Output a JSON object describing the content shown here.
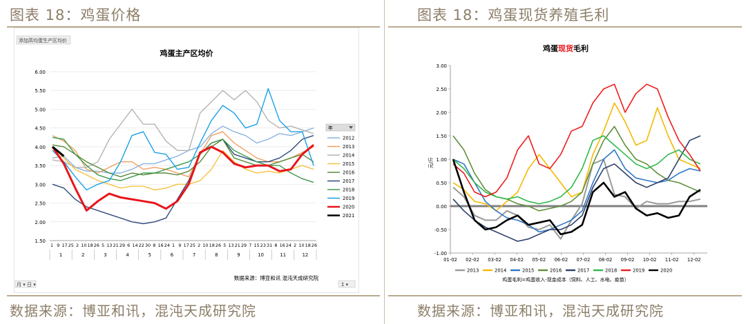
{
  "left": {
    "heading": "图表 18：鸡蛋价格",
    "footer": "数据来源：博亚和讯，混沌天成研究院",
    "sheet_tag": "添加高均蛋生产区均价",
    "bottom_ctrl_left": "月 ▾ 日 ▾",
    "bottom_ctrl_right": "Σ ▾",
    "legend_header": "年",
    "legend_filter_icon": "filter-icon",
    "chart_data": {
      "type": "line",
      "title": "鸡蛋主产区均价",
      "ylim": [
        1.5,
        6.0
      ],
      "yticks": [
        "6.00",
        "5.50",
        "5.00",
        "4.50",
        "4.00",
        "3.50",
        "3.00",
        "2.50",
        "2.00",
        "1.50"
      ],
      "xtick_labels": [
        "1",
        "9",
        "17",
        "25",
        "2",
        "10",
        "18",
        "26",
        "5",
        "13",
        "21",
        "29",
        "6",
        "14",
        "22",
        "30",
        "8",
        "16",
        "24",
        "1",
        "9",
        "17",
        "25",
        "2",
        "10",
        "18",
        "26",
        "5",
        "13",
        "21",
        "29",
        "7",
        "15",
        "23",
        "31",
        "8",
        "16",
        "24",
        "2",
        "10",
        "18",
        "26"
      ],
      "month_labels": [
        "1",
        "2",
        "3",
        "4",
        "5",
        "6",
        "7",
        "8",
        "9",
        "10",
        "11",
        "12"
      ],
      "note": "数据来源：博亚和讯  混沌天成研究院",
      "series": [
        {
          "name": "2012",
          "color": "#8ab4e0",
          "width": 1.4,
          "values": [
            3.7,
            3.75,
            3.45,
            3.35,
            3.35,
            3.3,
            3.3,
            3.4,
            3.55,
            3.55,
            3.65,
            3.75,
            3.9,
            4.0,
            4.35,
            4.55,
            4.4,
            4.3,
            4.1,
            4.2,
            4.35,
            4.3,
            4.4,
            4.5
          ]
        },
        {
          "name": "2013",
          "color": "#f0a060",
          "width": 1.4,
          "values": [
            4.3,
            4.15,
            3.9,
            3.4,
            3.3,
            3.45,
            3.6,
            3.6,
            3.4,
            3.45,
            3.4,
            3.3,
            3.2,
            3.8,
            4.3,
            4.4,
            4.1,
            3.9,
            3.7,
            3.6,
            3.6,
            3.7,
            3.85,
            4.0
          ]
        },
        {
          "name": "2014",
          "color": "#b4b4b4",
          "width": 1.4,
          "values": [
            3.65,
            3.6,
            3.45,
            3.45,
            3.6,
            4.2,
            4.6,
            5.0,
            4.6,
            4.6,
            4.15,
            3.9,
            3.9,
            4.9,
            5.2,
            5.5,
            5.25,
            5.5,
            5.2,
            4.7,
            4.5,
            4.55,
            4.45,
            4.35
          ]
        },
        {
          "name": "2015",
          "color": "#f5c242",
          "width": 1.4,
          "values": [
            4.0,
            3.7,
            3.4,
            3.25,
            3.1,
            3.0,
            2.9,
            2.95,
            2.95,
            2.85,
            2.9,
            3.0,
            3.0,
            3.1,
            3.4,
            3.9,
            3.6,
            3.4,
            3.3,
            3.35,
            3.3,
            3.4,
            3.5,
            3.4
          ]
        },
        {
          "name": "2016",
          "color": "#5a8a3a",
          "width": 1.4,
          "values": [
            4.05,
            4.0,
            3.8,
            3.6,
            3.45,
            3.3,
            3.2,
            3.3,
            3.25,
            3.3,
            3.3,
            3.25,
            3.35,
            3.6,
            4.0,
            4.2,
            3.7,
            3.6,
            3.5,
            3.5,
            3.6,
            3.7,
            3.8,
            3.6
          ]
        },
        {
          "name": "2017",
          "color": "#2e4a7a",
          "width": 1.4,
          "values": [
            3.0,
            2.9,
            2.6,
            2.4,
            2.3,
            2.2,
            2.1,
            2.0,
            1.95,
            2.0,
            2.1,
            2.6,
            3.1,
            3.8,
            4.1,
            4.2,
            3.8,
            3.7,
            3.6,
            3.6,
            3.7,
            3.9,
            4.2,
            4.3
          ]
        },
        {
          "name": "2018",
          "color": "#3e9a4a",
          "width": 1.4,
          "values": [
            4.25,
            4.2,
            3.8,
            3.5,
            3.25,
            3.15,
            3.1,
            3.2,
            3.3,
            3.3,
            3.4,
            3.5,
            3.6,
            3.8,
            4.1,
            4.2,
            3.9,
            3.75,
            3.6,
            3.5,
            3.5,
            3.3,
            3.15,
            3.05
          ]
        },
        {
          "name": "2019",
          "color": "#1aa0e6",
          "width": 1.4,
          "values": [
            3.9,
            3.6,
            3.2,
            2.85,
            3.0,
            3.1,
            3.6,
            4.3,
            4.4,
            3.85,
            3.8,
            3.4,
            3.45,
            4.1,
            4.7,
            5.1,
            4.9,
            4.5,
            4.6,
            5.55,
            4.7,
            4.4,
            4.4,
            3.5
          ]
        },
        {
          "name": "2020",
          "color": "#e8151b",
          "width": 3.0,
          "values": [
            4.0,
            3.55,
            2.9,
            2.3,
            2.55,
            2.75,
            2.65,
            2.6,
            2.55,
            2.5,
            2.35,
            2.55,
            3.0,
            3.85,
            4.0,
            3.85,
            3.55,
            3.45,
            3.5,
            3.5,
            3.35,
            3.4,
            3.8,
            4.05
          ]
        },
        {
          "name": "2021",
          "color": "#000000",
          "width": 3.0,
          "values": [
            4.0,
            3.75
          ]
        }
      ]
    }
  },
  "right": {
    "heading": "图表 18：鸡蛋现货养殖毛利",
    "footer": "数据来源：博亚和讯，混沌天成研究院",
    "chart_data": {
      "type": "line",
      "title_parts": [
        "鸡蛋",
        "现货",
        "毛利"
      ],
      "ylabel": "元/斤",
      "ylim": [
        -1.0,
        3.0
      ],
      "yticks": [
        "3.00",
        "2.50",
        "2.00",
        "1.50",
        "1.00",
        "0.50",
        "0.00",
        "-0.50",
        "-1.00"
      ],
      "xticks": [
        "01-02",
        "02-02",
        "03-02",
        "04-02",
        "05-02",
        "06-02",
        "07-02",
        "08-02",
        "09-02",
        "10-02",
        "11-02",
        "12-02"
      ],
      "note": "鸡蛋毛利=鸡蛋收入-现金成本（饲料、人工、水电、疫苗）",
      "series": [
        {
          "name": "2013",
          "color": "#999999",
          "width": 2.0,
          "values": [
            0.4,
            0.2,
            -0.2,
            -0.3,
            -0.3,
            -0.1,
            -0.2,
            -0.45,
            -0.5,
            -0.4,
            -0.7,
            -0.3,
            0.05,
            0.9,
            1.0,
            0.25,
            0.2,
            -0.05,
            0.1,
            0.05,
            0.05,
            0.1,
            0.1,
            0.15
          ]
        },
        {
          "name": "2014",
          "color": "#f5b800",
          "width": 1.6,
          "values": [
            0.5,
            0.35,
            0.1,
            0.05,
            -0.1,
            0.1,
            0.3,
            0.8,
            1.1,
            0.8,
            0.5,
            0.2,
            0.3,
            1.1,
            1.6,
            2.2,
            1.8,
            1.3,
            1.4,
            2.1,
            1.5,
            1.0,
            0.9,
            0.8
          ]
        },
        {
          "name": "2015",
          "color": "#2f77c7",
          "width": 1.6,
          "values": [
            1.0,
            0.9,
            0.5,
            0.1,
            -0.1,
            -0.25,
            -0.3,
            -0.4,
            -0.55,
            -0.5,
            -0.4,
            -0.3,
            -0.1,
            0.5,
            1.0,
            1.2,
            0.8,
            0.6,
            0.55,
            0.5,
            0.55,
            0.7,
            0.8,
            0.75
          ]
        },
        {
          "name": "2016",
          "color": "#5f8f3a",
          "width": 1.6,
          "values": [
            1.5,
            1.2,
            0.7,
            0.35,
            0.2,
            0.15,
            0.05,
            0.0,
            -0.1,
            -0.05,
            0.0,
            0.1,
            0.3,
            0.9,
            1.4,
            1.7,
            1.3,
            1.0,
            0.9,
            0.7,
            0.55,
            0.5,
            0.4,
            0.3
          ]
        },
        {
          "name": "2017",
          "color": "#2b3f6a",
          "width": 1.6,
          "values": [
            0.15,
            -0.1,
            -0.3,
            -0.45,
            -0.55,
            -0.65,
            -0.75,
            -0.7,
            -0.6,
            -0.5,
            -0.5,
            -0.4,
            -0.2,
            0.4,
            0.8,
            0.9,
            0.7,
            0.5,
            0.4,
            0.5,
            0.6,
            1.0,
            1.4,
            1.5
          ]
        },
        {
          "name": "2018",
          "color": "#2fb84a",
          "width": 1.6,
          "values": [
            1.0,
            0.8,
            0.5,
            0.3,
            0.2,
            0.15,
            0.2,
            0.1,
            0.05,
            0.1,
            0.2,
            0.4,
            0.8,
            1.4,
            1.5,
            1.3,
            1.1,
            0.9,
            0.8,
            0.9,
            1.1,
            1.2,
            1.0,
            0.9
          ]
        },
        {
          "name": "2019",
          "color": "#ee1c1c",
          "width": 1.6,
          "values": [
            0.9,
            0.7,
            0.3,
            0.2,
            0.3,
            0.6,
            1.2,
            1.5,
            0.9,
            0.8,
            1.1,
            1.6,
            1.7,
            2.2,
            2.5,
            2.6,
            2.0,
            2.4,
            2.6,
            2.5,
            1.9,
            1.4,
            1.1,
            0.75
          ]
        },
        {
          "name": "2020",
          "color": "#000000",
          "width": 2.6,
          "values": [
            1.0,
            0.3,
            -0.3,
            -0.5,
            -0.45,
            -0.3,
            -0.2,
            -0.4,
            -0.35,
            -0.3,
            -0.6,
            -0.55,
            -0.4,
            0.3,
            0.5,
            0.2,
            0.3,
            -0.05,
            -0.2,
            -0.15,
            -0.25,
            -0.2,
            0.2,
            0.35
          ]
        }
      ]
    }
  }
}
